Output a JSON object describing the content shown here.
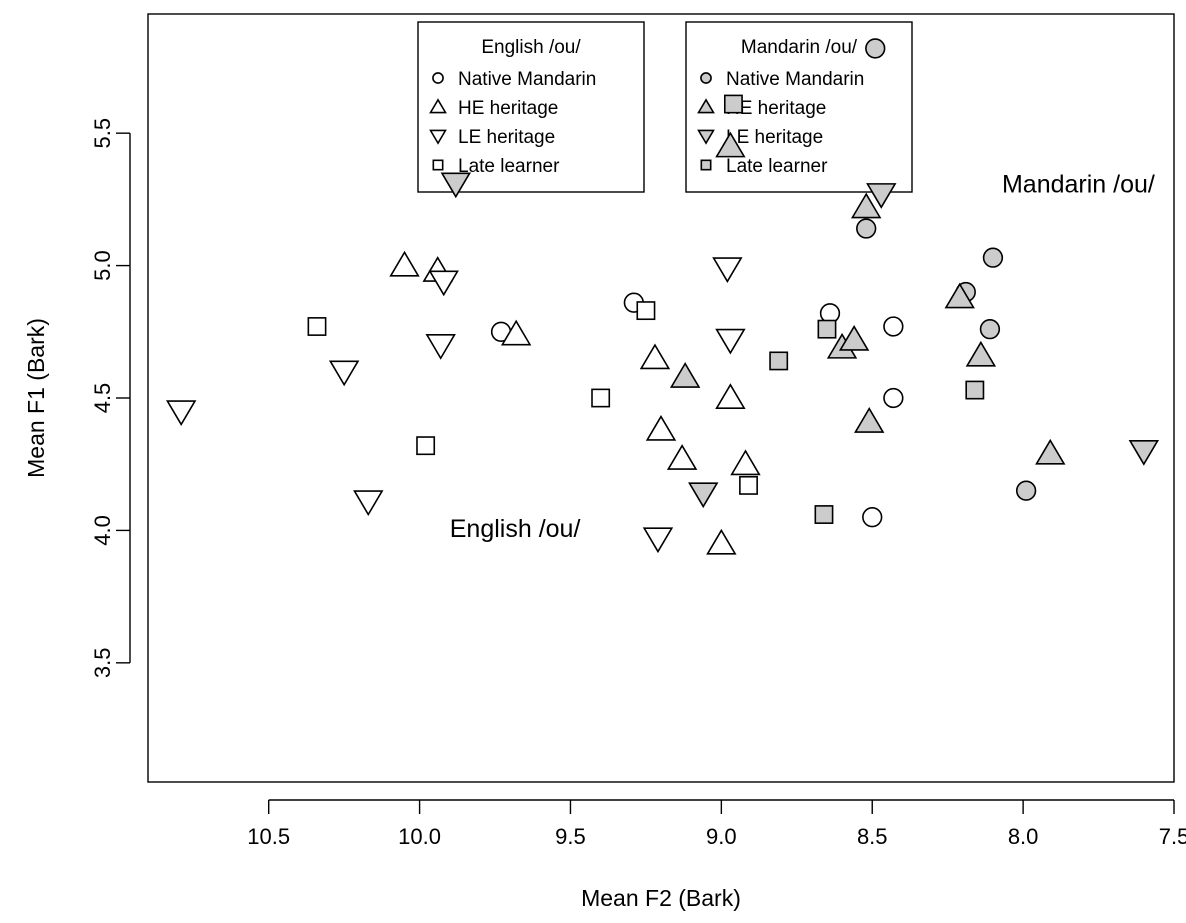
{
  "chart_data": {
    "type": "scatter",
    "title": "",
    "xlabel": "Mean F2 (Bark)",
    "ylabel": "Mean F1 (Bark)",
    "xlim": [
      10.9,
      7.5
    ],
    "ylim": [
      5.95,
      3.05
    ],
    "x_reversed": true,
    "y_reversed": true,
    "x_ticks": [
      10.5,
      10.0,
      9.5,
      9.0,
      8.5,
      8.0,
      7.5
    ],
    "x_tick_labels": [
      "10.5",
      "10.0",
      "9.5",
      "9.0",
      "8.5",
      "8.0",
      "7.5"
    ],
    "y_ticks": [
      3.5,
      4.0,
      4.5,
      5.0,
      5.5
    ],
    "y_tick_labels": [
      "3.5",
      "4.0",
      "4.5",
      "5.0",
      "5.5"
    ],
    "grid": false,
    "legend_placement": "top-center",
    "legends": [
      {
        "title": "English /ou/",
        "entries": [
          {
            "label": "Native Mandarin",
            "shape": "circle",
            "fill": "#ffffff"
          },
          {
            "label": "HE heritage",
            "shape": "triangle-up",
            "fill": "#ffffff"
          },
          {
            "label": "LE heritage",
            "shape": "triangle-down",
            "fill": "#ffffff"
          },
          {
            "label": "Late learner",
            "shape": "square",
            "fill": "#ffffff"
          }
        ]
      },
      {
        "title": "Mandarin /ou/",
        "entries": [
          {
            "label": "Native Mandarin",
            "shape": "circle",
            "fill": "#cccccc"
          },
          {
            "label": "HE heritage",
            "shape": "triangle-up",
            "fill": "#cccccc"
          },
          {
            "label": "LE heritage",
            "shape": "triangle-down",
            "fill": "#cccccc"
          },
          {
            "label": "Late learner",
            "shape": "square",
            "fill": "#cccccc"
          }
        ]
      }
    ],
    "annotations": [
      {
        "text": "English /ou/",
        "x": 9.9,
        "y": 4.0
      },
      {
        "text": "Mandarin /ou/",
        "x": 8.07,
        "y": 5.3
      }
    ],
    "series": [
      {
        "vowel": "English /ou/",
        "group": "Native Mandarin",
        "shape": "circle",
        "fill": "#ffffff",
        "points": [
          [
            9.73,
            4.75
          ],
          [
            9.29,
            4.86
          ],
          [
            8.64,
            4.82
          ],
          [
            8.43,
            4.77
          ],
          [
            8.43,
            4.5
          ],
          [
            8.5,
            4.05
          ]
        ]
      },
      {
        "vowel": "English /ou/",
        "group": "HE heritage",
        "shape": "triangle-up",
        "fill": "#ffffff",
        "points": [
          [
            9.68,
            4.74
          ],
          [
            9.94,
            4.98
          ],
          [
            10.05,
            5.0
          ],
          [
            9.22,
            4.65
          ],
          [
            9.2,
            4.38
          ],
          [
            9.13,
            4.27
          ],
          [
            8.97,
            4.5
          ],
          [
            8.92,
            4.25
          ],
          [
            9.0,
            3.95
          ]
        ]
      },
      {
        "vowel": "English /ou/",
        "group": "LE heritage",
        "shape": "triangle-down",
        "fill": "#ffffff",
        "points": [
          [
            10.79,
            4.45
          ],
          [
            10.17,
            4.11
          ],
          [
            10.25,
            4.6
          ],
          [
            9.93,
            4.7
          ],
          [
            9.92,
            4.94
          ],
          [
            9.21,
            3.97
          ],
          [
            8.98,
            4.99
          ],
          [
            8.97,
            4.72
          ]
        ]
      },
      {
        "vowel": "English /ou/",
        "group": "Late learner",
        "shape": "square",
        "fill": "#ffffff",
        "points": [
          [
            10.34,
            4.77
          ],
          [
            9.98,
            4.32
          ],
          [
            9.4,
            4.5
          ],
          [
            9.25,
            4.83
          ],
          [
            8.91,
            4.17
          ]
        ]
      },
      {
        "vowel": "Mandarin /ou/",
        "group": "Native Mandarin",
        "shape": "circle",
        "fill": "#cccccc",
        "points": [
          [
            7.99,
            4.15
          ],
          [
            8.11,
            4.76
          ],
          [
            8.19,
            4.9
          ],
          [
            8.1,
            5.03
          ],
          [
            8.52,
            5.14
          ],
          [
            8.49,
            5.82
          ]
        ]
      },
      {
        "vowel": "Mandarin /ou/",
        "group": "HE heritage",
        "shape": "triangle-up",
        "fill": "#cccccc",
        "points": [
          [
            7.91,
            4.29
          ],
          [
            8.51,
            4.41
          ],
          [
            8.6,
            4.69
          ],
          [
            8.56,
            4.72
          ],
          [
            8.14,
            4.66
          ],
          [
            8.21,
            4.88
          ],
          [
            8.52,
            5.22
          ],
          [
            9.12,
            4.58
          ],
          [
            8.97,
            5.45
          ]
        ]
      },
      {
        "vowel": "Mandarin /ou/",
        "group": "LE heritage",
        "shape": "triangle-down",
        "fill": "#cccccc",
        "points": [
          [
            7.6,
            4.3
          ],
          [
            9.06,
            4.14
          ],
          [
            8.47,
            5.27
          ],
          [
            9.88,
            5.31
          ]
        ]
      },
      {
        "vowel": "Mandarin /ou/",
        "group": "Late learner",
        "shape": "square",
        "fill": "#cccccc",
        "points": [
          [
            8.66,
            4.06
          ],
          [
            8.16,
            4.53
          ],
          [
            8.81,
            4.64
          ],
          [
            8.65,
            4.76
          ],
          [
            8.96,
            5.61
          ]
        ]
      }
    ]
  }
}
